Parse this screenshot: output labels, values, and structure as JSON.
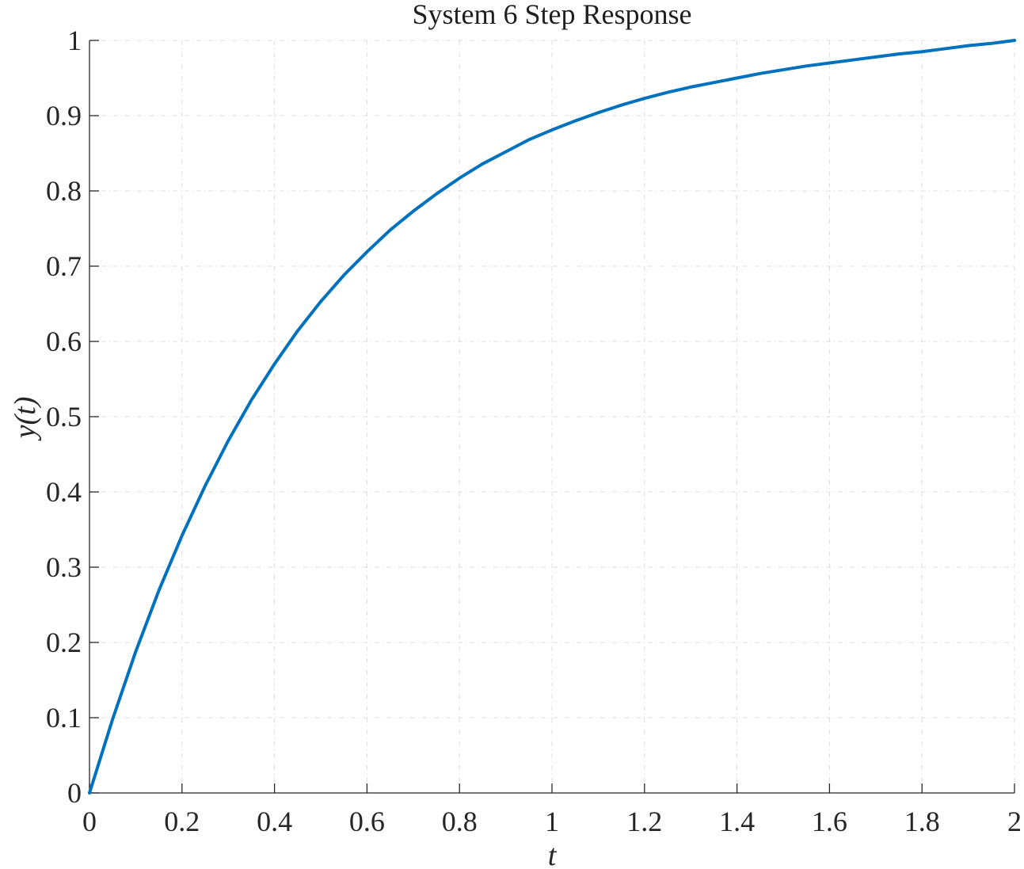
{
  "chart_data": {
    "type": "line",
    "title": "System 6 Step Response",
    "xlabel": "t",
    "ylabel": "y(t)",
    "xlim": [
      0,
      2
    ],
    "ylim": [
      0,
      1
    ],
    "grid": true,
    "line_color": "#0072BD",
    "xticks": [
      0,
      0.2,
      0.4,
      0.6,
      0.8,
      1,
      1.2,
      1.4,
      1.6,
      1.8,
      2
    ],
    "xtick_labels": [
      "0",
      "0.2",
      "0.4",
      "0.6",
      "0.8",
      "1",
      "1.2",
      "1.4",
      "1.6",
      "1.8",
      "2"
    ],
    "yticks": [
      0,
      0.1,
      0.2,
      0.3,
      0.4,
      0.5,
      0.6,
      0.7,
      0.8,
      0.9,
      1
    ],
    "ytick_labels": [
      "0",
      "0.1",
      "0.2",
      "0.3",
      "0.4",
      "0.5",
      "0.6",
      "0.7",
      "0.8",
      "0.9",
      "1"
    ],
    "series": [
      {
        "x": [
          0,
          0.05,
          0.1,
          0.15,
          0.2,
          0.25,
          0.3,
          0.35,
          0.4,
          0.45,
          0.5,
          0.55,
          0.6,
          0.65,
          0.7,
          0.75,
          0.8,
          0.85,
          0.9,
          0.95,
          1,
          1.05,
          1.1,
          1.15,
          1.2,
          1.25,
          1.3,
          1.35,
          1.4,
          1.45,
          1.5,
          1.55,
          1.6,
          1.65,
          1.7,
          1.75,
          1.8,
          1.85,
          1.9,
          1.95,
          2
        ],
        "y": [
          0,
          0.098,
          0.188,
          0.269,
          0.342,
          0.408,
          0.468,
          0.522,
          0.57,
          0.614,
          0.653,
          0.688,
          0.719,
          0.748,
          0.773,
          0.796,
          0.817,
          0.836,
          0.852,
          0.868,
          0.881,
          0.893,
          0.904,
          0.914,
          0.923,
          0.931,
          0.938,
          0.944,
          0.95,
          0.956,
          0.961,
          0.966,
          0.97,
          0.974,
          0.978,
          0.982,
          0.985,
          0.989,
          0.993,
          0.996,
          1.0
        ]
      }
    ]
  }
}
